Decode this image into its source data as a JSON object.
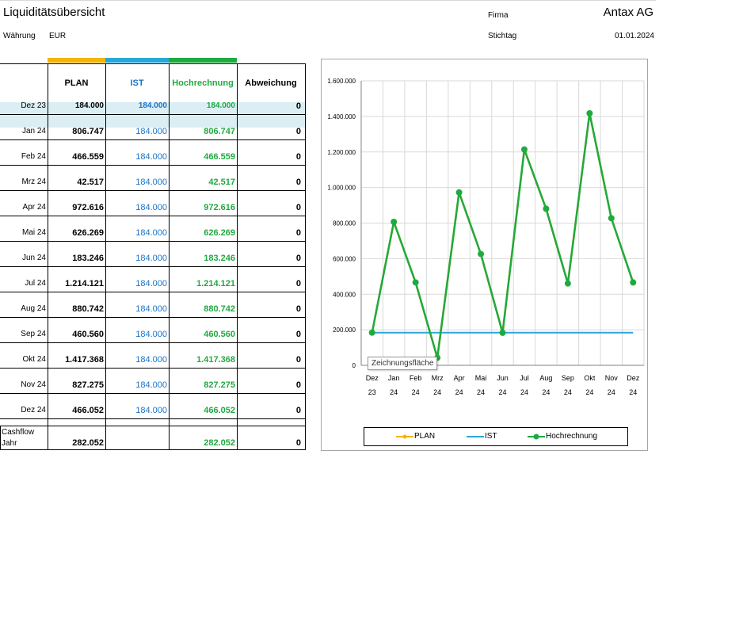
{
  "header": {
    "title": "Liquiditätsübersicht",
    "currency_label": "Währung",
    "currency_value": "EUR",
    "company_label": "Firma",
    "company_value": "Antax AG",
    "date_label": "Stichtag",
    "date_value": "01.01.2024"
  },
  "colors": {
    "plan": "#f5b400",
    "ist": "#2aa7d9",
    "hoch": "#1faa3f"
  },
  "table": {
    "columns": [
      "PLAN",
      "IST",
      "Hochrechnung",
      "Abweichung"
    ],
    "rows": [
      {
        "label": "Dez 23",
        "plan": "184.000",
        "ist": "184.000",
        "hoch": "184.000",
        "abw": "0"
      },
      {
        "label": "Jan 24",
        "plan": "806.747",
        "ist": "184.000",
        "hoch": "806.747",
        "abw": "0"
      },
      {
        "label": "Feb 24",
        "plan": "466.559",
        "ist": "184.000",
        "hoch": "466.559",
        "abw": "0"
      },
      {
        "label": "Mrz 24",
        "plan": "42.517",
        "ist": "184.000",
        "hoch": "42.517",
        "abw": "0"
      },
      {
        "label": "Apr 24",
        "plan": "972.616",
        "ist": "184.000",
        "hoch": "972.616",
        "abw": "0"
      },
      {
        "label": "Mai 24",
        "plan": "626.269",
        "ist": "184.000",
        "hoch": "626.269",
        "abw": "0"
      },
      {
        "label": "Jun 24",
        "plan": "183.246",
        "ist": "184.000",
        "hoch": "183.246",
        "abw": "0"
      },
      {
        "label": "Jul 24",
        "plan": "1.214.121",
        "ist": "184.000",
        "hoch": "1.214.121",
        "abw": "0"
      },
      {
        "label": "Aug 24",
        "plan": "880.742",
        "ist": "184.000",
        "hoch": "880.742",
        "abw": "0"
      },
      {
        "label": "Sep 24",
        "plan": "460.560",
        "ist": "184.000",
        "hoch": "460.560",
        "abw": "0"
      },
      {
        "label": "Okt 24",
        "plan": "1.417.368",
        "ist": "184.000",
        "hoch": "1.417.368",
        "abw": "0"
      },
      {
        "label": "Nov 24",
        "plan": "827.275",
        "ist": "184.000",
        "hoch": "827.275",
        "abw": "0"
      },
      {
        "label": "Dez 24",
        "plan": "466.052",
        "ist": "184.000",
        "hoch": "466.052",
        "abw": "0"
      }
    ],
    "total": {
      "label_line1": "Cashflow",
      "label_line2": "Jahr",
      "plan": "282.052",
      "ist": "",
      "hoch": "282.052",
      "abw": "0"
    }
  },
  "tooltip": "Zeichnungsfläche",
  "chart_data": {
    "type": "line",
    "categories": [
      [
        "Dez",
        "23"
      ],
      [
        "Jan",
        "24"
      ],
      [
        "Feb",
        "24"
      ],
      [
        "Mrz",
        "24"
      ],
      [
        "Apr",
        "24"
      ],
      [
        "Mai",
        "24"
      ],
      [
        "Jun",
        "24"
      ],
      [
        "Jul",
        "24"
      ],
      [
        "Aug",
        "24"
      ],
      [
        "Sep",
        "24"
      ],
      [
        "Okt",
        "24"
      ],
      [
        "Nov",
        "24"
      ],
      [
        "Dez",
        "24"
      ]
    ],
    "series": [
      {
        "name": "PLAN",
        "values": [
          184000,
          806747,
          466559,
          42517,
          972616,
          626269,
          183246,
          1214121,
          880742,
          460560,
          1417368,
          827275,
          466052
        ],
        "color": "#f5b400"
      },
      {
        "name": "IST",
        "values": [
          184000,
          184000,
          184000,
          184000,
          184000,
          184000,
          184000,
          184000,
          184000,
          184000,
          184000,
          184000,
          184000
        ],
        "color": "#2aa7d9"
      },
      {
        "name": "Hochrechnung",
        "values": [
          184000,
          806747,
          466559,
          42517,
          972616,
          626269,
          183246,
          1214121,
          880742,
          460560,
          1417368,
          827275,
          466052
        ],
        "color": "#1faa3f"
      }
    ],
    "yticks": [
      "0",
      "200.000",
      "400.000",
      "600.000",
      "800.000",
      "1.000.000",
      "1.200.000",
      "1.400.000",
      "1.600.000"
    ],
    "ylim": [
      0,
      1600000
    ],
    "grid": true,
    "legend": "bottom"
  }
}
